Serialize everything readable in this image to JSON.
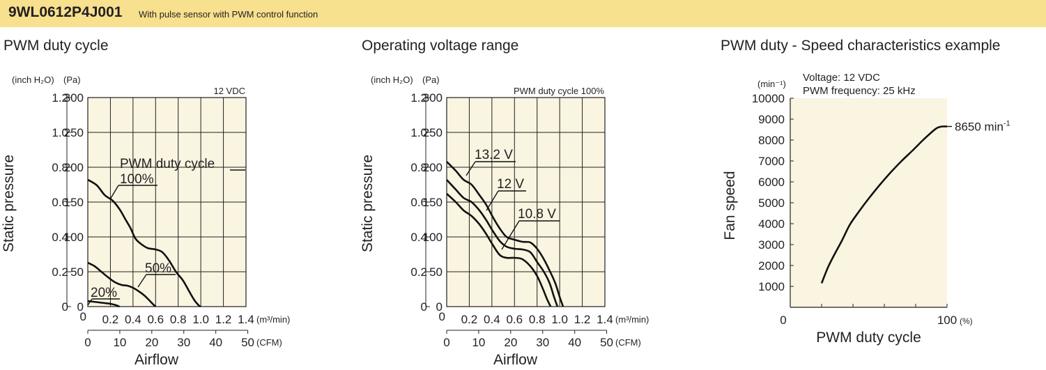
{
  "header": {
    "model": "9WL0612P4J001",
    "description": "With pulse sensor with PWM control function",
    "colors": {
      "banner": "#f7e08e",
      "plot_background": "#f9f5e1"
    }
  },
  "chart_data": [
    {
      "type": "line",
      "title": "PWM duty cycle",
      "condition": "12 VDC",
      "ylabel": "Static pressure",
      "xlabel": "Airflow",
      "y_unit_left": "(inch H₂O)",
      "y_unit_right": "(Pa)",
      "x_unit_top": "(m³/min)",
      "x_unit_bottom": "(CFM)",
      "xlim": [
        0,
        1.4
      ],
      "ylim": [
        0,
        300
      ],
      "x_ticks_m3min": [
        "0.2",
        "0.4",
        "0.6",
        "0.8",
        "1.0",
        "1.2",
        "1.4"
      ],
      "x_ticks_cfm": [
        "0",
        "10",
        "20",
        "30",
        "40",
        "50"
      ],
      "y_ticks_pa": [
        "0",
        "50",
        "100",
        "150",
        "200",
        "250",
        "300"
      ],
      "y_ticks_inch": [
        "0",
        "0.2",
        "0.4",
        "0.6",
        "0.8",
        "1.0",
        "1.2"
      ],
      "series_group_label": "PWM duty cycle",
      "series": [
        {
          "name": "100%",
          "x": [
            0,
            0.08,
            0.15,
            0.22,
            0.28,
            0.33,
            0.38,
            0.42,
            0.47,
            0.53,
            0.6,
            0.66,
            0.72,
            0.78,
            0.84,
            0.89,
            0.94,
            0.98,
            1.0
          ],
          "y": [
            182,
            174,
            160,
            152,
            140,
            126,
            112,
            98,
            90,
            84,
            82,
            78,
            66,
            50,
            38,
            24,
            10,
            2,
            0
          ]
        },
        {
          "name": "50%",
          "x": [
            0,
            0.06,
            0.12,
            0.18,
            0.24,
            0.3,
            0.35,
            0.4,
            0.45,
            0.5,
            0.55,
            0.58,
            0.6
          ],
          "y": [
            63,
            58,
            50,
            42,
            35,
            31,
            30,
            27,
            22,
            16,
            8,
            3,
            0
          ]
        },
        {
          "name": "20%",
          "x": [
            0,
            0.05,
            0.1,
            0.15,
            0.2,
            0.25,
            0.28
          ],
          "y": [
            8,
            7,
            6,
            5,
            4,
            2,
            0
          ]
        }
      ]
    },
    {
      "type": "line",
      "title": "Operating voltage range",
      "condition": "PWM duty cycle 100%",
      "ylabel": "Static pressure",
      "xlabel": "Airflow",
      "y_unit_left": "(inch H₂O)",
      "y_unit_right": "(Pa)",
      "x_unit_top": "(m³/min)",
      "x_unit_bottom": "(CFM)",
      "xlim": [
        0,
        1.4
      ],
      "ylim": [
        0,
        300
      ],
      "x_ticks_m3min": [
        "0.2",
        "0.4",
        "0.6",
        "0.8",
        "1.0",
        "1.2",
        "1.4"
      ],
      "x_ticks_cfm": [
        "0",
        "10",
        "20",
        "30",
        "40",
        "50"
      ],
      "y_ticks_pa": [
        "0",
        "50",
        "100",
        "150",
        "200",
        "250",
        "300"
      ],
      "y_ticks_inch": [
        "0",
        "0.2",
        "0.4",
        "0.6",
        "0.8",
        "1.0",
        "1.2"
      ],
      "series": [
        {
          "name": "13.2 V",
          "x": [
            0,
            0.08,
            0.15,
            0.22,
            0.29,
            0.35,
            0.41,
            0.47,
            0.53,
            0.6,
            0.67,
            0.74,
            0.8,
            0.86,
            0.91,
            0.96,
            1.0,
            1.03
          ],
          "y": [
            208,
            195,
            182,
            175,
            160,
            146,
            128,
            112,
            100,
            96,
            93,
            92,
            83,
            68,
            52,
            34,
            14,
            0
          ]
        },
        {
          "name": "12 V",
          "x": [
            0,
            0.08,
            0.15,
            0.22,
            0.29,
            0.35,
            0.41,
            0.47,
            0.53,
            0.6,
            0.67,
            0.74,
            0.8,
            0.86,
            0.91,
            0.95,
            0.98
          ],
          "y": [
            182,
            168,
            156,
            150,
            138,
            124,
            108,
            94,
            86,
            83,
            82,
            78,
            64,
            50,
            34,
            14,
            0
          ]
        },
        {
          "name": "10.8 V",
          "x": [
            0,
            0.08,
            0.15,
            0.22,
            0.29,
            0.35,
            0.41,
            0.47,
            0.53,
            0.6,
            0.67,
            0.74,
            0.8,
            0.85,
            0.89,
            0.92
          ],
          "y": [
            162,
            150,
            138,
            130,
            118,
            104,
            88,
            74,
            70,
            70,
            68,
            58,
            44,
            26,
            10,
            0
          ]
        }
      ]
    },
    {
      "type": "line",
      "title": "PWM duty - Speed characteristics example",
      "ylabel": "Fan speed",
      "xlabel": "PWM duty cycle",
      "y_unit": "(min⁻¹)",
      "x_unit": "(%)",
      "annotation_lines": [
        "Voltage: 12 VDC",
        "PWM frequency: 25 kHz"
      ],
      "xlim": [
        0,
        100
      ],
      "ylim": [
        0,
        10000
      ],
      "x_ticks": [
        "0",
        "100"
      ],
      "y_ticks": [
        "1000",
        "2000",
        "3000",
        "4000",
        "5000",
        "6000",
        "7000",
        "8000",
        "9000",
        "10000"
      ],
      "end_label_value": "8650",
      "end_label_unit": "min",
      "end_label_sup": "-1",
      "series": [
        {
          "x": [
            20,
            24,
            28,
            33,
            38,
            44,
            50,
            57,
            64,
            71,
            78,
            84,
            89,
            93,
            95,
            97,
            100
          ],
          "y": [
            1150,
            1900,
            2500,
            3200,
            3950,
            4600,
            5200,
            5850,
            6450,
            7000,
            7500,
            7950,
            8300,
            8550,
            8620,
            8650,
            8650
          ]
        }
      ]
    }
  ]
}
